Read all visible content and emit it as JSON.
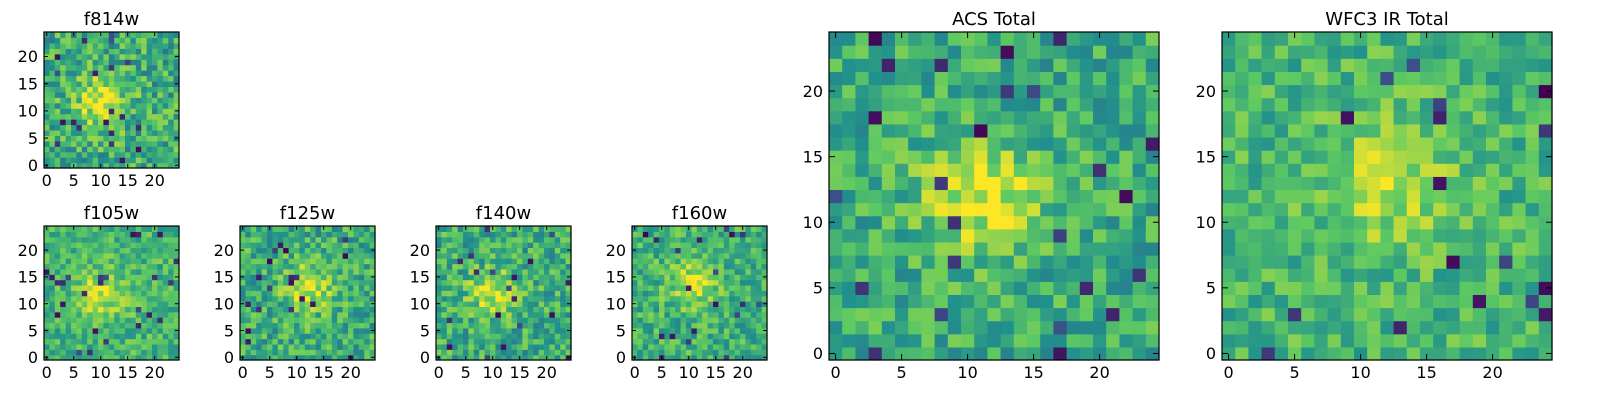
{
  "figure": {
    "background": "#ffffff"
  },
  "colormap": {
    "name": "viridis",
    "stops": [
      "#440154",
      "#3b528b",
      "#21918c",
      "#5ec962",
      "#fde725"
    ]
  },
  "chart_data": [
    {
      "type": "heatmap",
      "title": "f814w",
      "grid": [
        25,
        25
      ],
      "xlim": [
        -0.5,
        24.5
      ],
      "ylim": [
        -0.5,
        24.5
      ],
      "xticks": [
        0,
        5,
        10,
        15,
        20
      ],
      "yticks": [
        0,
        5,
        10,
        15,
        20
      ],
      "xtick_labels": [
        "0",
        "5",
        "10",
        "15",
        "20"
      ],
      "ytick_labels": [
        "0",
        "5",
        "10",
        "15",
        "20"
      ],
      "peak": {
        "x": 10,
        "y": 12,
        "value": 0.95
      },
      "background_level": 0.62,
      "noise_level": 0.22,
      "seed": 11
    },
    {
      "type": "heatmap",
      "title": "f105w",
      "grid": [
        25,
        25
      ],
      "xlim": [
        -0.5,
        24.5
      ],
      "ylim": [
        -0.5,
        24.5
      ],
      "xticks": [
        0,
        5,
        10,
        15,
        20
      ],
      "yticks": [
        0,
        5,
        10,
        15,
        20
      ],
      "xtick_labels": [
        "0",
        "5",
        "10",
        "15",
        "20"
      ],
      "ytick_labels": [
        "0",
        "5",
        "10",
        "15",
        "20"
      ],
      "peak": {
        "x": 10,
        "y": 12,
        "value": 0.92
      },
      "background_level": 0.66,
      "noise_level": 0.16,
      "seed": 23
    },
    {
      "type": "heatmap",
      "title": "f125w",
      "grid": [
        25,
        25
      ],
      "xlim": [
        -0.5,
        24.5
      ],
      "ylim": [
        -0.5,
        24.5
      ],
      "xticks": [
        0,
        5,
        10,
        15,
        20
      ],
      "yticks": [
        0,
        5,
        10,
        15,
        20
      ],
      "xtick_labels": [
        "0",
        "5",
        "10",
        "15",
        "20"
      ],
      "ytick_labels": [
        "0",
        "5",
        "10",
        "15",
        "20"
      ],
      "peak": {
        "x": 12,
        "y": 13,
        "value": 0.92
      },
      "background_level": 0.62,
      "noise_level": 0.2,
      "seed": 37
    },
    {
      "type": "heatmap",
      "title": "f140w",
      "grid": [
        25,
        25
      ],
      "xlim": [
        -0.5,
        24.5
      ],
      "ylim": [
        -0.5,
        24.5
      ],
      "xticks": [
        0,
        5,
        10,
        15,
        20
      ],
      "yticks": [
        0,
        5,
        10,
        15,
        20
      ],
      "xtick_labels": [
        "0",
        "5",
        "10",
        "15",
        "20"
      ],
      "ytick_labels": [
        "0",
        "5",
        "10",
        "15",
        "20"
      ],
      "peak": {
        "x": 10,
        "y": 12,
        "value": 0.9
      },
      "background_level": 0.62,
      "noise_level": 0.2,
      "seed": 41
    },
    {
      "type": "heatmap",
      "title": "f160w",
      "grid": [
        25,
        25
      ],
      "xlim": [
        -0.5,
        24.5
      ],
      "ylim": [
        -0.5,
        24.5
      ],
      "xticks": [
        0,
        5,
        10,
        15,
        20
      ],
      "yticks": [
        0,
        5,
        10,
        15,
        20
      ],
      "xtick_labels": [
        "0",
        "5",
        "10",
        "15",
        "20"
      ],
      "ytick_labels": [
        "0",
        "5",
        "10",
        "15",
        "20"
      ],
      "peak": {
        "x": 11,
        "y": 14,
        "value": 0.92
      },
      "background_level": 0.64,
      "noise_level": 0.18,
      "seed": 53
    },
    {
      "type": "heatmap",
      "title": "ACS Total",
      "grid": [
        25,
        25
      ],
      "xlim": [
        -0.5,
        24.5
      ],
      "ylim": [
        -0.5,
        24.5
      ],
      "xticks": [
        0,
        5,
        10,
        15,
        20
      ],
      "yticks": [
        0,
        5,
        10,
        15,
        20
      ],
      "xtick_labels": [
        "0",
        "5",
        "10",
        "15",
        "20"
      ],
      "ytick_labels": [
        "0",
        "5",
        "10",
        "15",
        "20"
      ],
      "peak": {
        "x": 11,
        "y": 12,
        "value": 0.96
      },
      "background_level": 0.62,
      "noise_level": 0.18,
      "seed": 67
    },
    {
      "type": "heatmap",
      "title": "WFC3 IR Total",
      "grid": [
        25,
        25
      ],
      "xlim": [
        -0.5,
        24.5
      ],
      "ylim": [
        -0.5,
        24.5
      ],
      "xticks": [
        0,
        5,
        10,
        15,
        20
      ],
      "yticks": [
        0,
        5,
        10,
        15,
        20
      ],
      "xtick_labels": [
        "0",
        "5",
        "10",
        "15",
        "20"
      ],
      "ytick_labels": [
        "0",
        "5",
        "10",
        "15",
        "20"
      ],
      "peak": {
        "x": 12,
        "y": 13,
        "value": 0.92
      },
      "background_level": 0.66,
      "noise_level": 0.16,
      "seed": 79
    }
  ]
}
